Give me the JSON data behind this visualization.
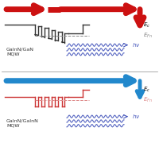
{
  "top_bg": "#dcdcdc",
  "bot_bg": "#f0b8a0",
  "top_arrow_color": "#cc1111",
  "bot_arrow_color": "#2288cc",
  "band_color_top": "#333333",
  "band_color_bot": "#cc3333",
  "efn_color_top": "#888888",
  "efn_color_bot": "#dd8888",
  "wavy_color": "#4455bb",
  "label_color": "#333333",
  "top_label": "GaInN/GaN\nMQW",
  "bot_label": "GaInN/GaInN\nMQW",
  "fig_width": 2.0,
  "fig_height": 1.8,
  "dpi": 100
}
